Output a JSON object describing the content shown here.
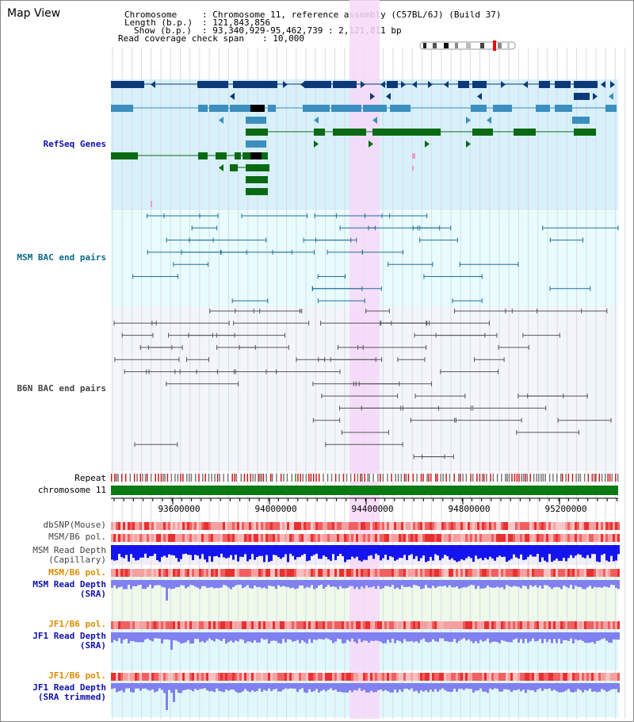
{
  "app": {
    "title": "Map View"
  },
  "info": {
    "chromosome_key": "Chromosome",
    "chromosome_val": ": Chromosome 11, reference assembly (C57BL/6J) (Build 37)",
    "length_key": "Length (b.p.)",
    "length_val": ": 121,843,856",
    "show_key": "Show (b.p.)",
    "show_val": ": 93,340,929-95,462,739 : 2,121,811 bp",
    "coverage_key": "Read coverage check span",
    "coverage_val": ": 10,000"
  },
  "tracks": {
    "refseq": "RefSeq Genes",
    "msm_bac": "MSM BAC end pairs",
    "b6n_bac": "B6N BAC end pairs",
    "repeat": "Repeat",
    "chromosome": "chromosome 11",
    "dbsnp": "dbSNP(Mouse)",
    "msm_pol1": "MSM/B6 pol.",
    "msm_depth_cap": "MSM Read Depth\n(Capillary)",
    "msm_pol2": "MSM/B6 pol.",
    "msm_depth_sra": "MSM Read Depth\n(SRA)",
    "jf1_pol1": "JF1/B6 pol.",
    "jf1_depth_sra": "JF1 Read Depth\n(SRA)",
    "jf1_pol2": "JF1/B6 pol.",
    "jf1_depth_trim": "JF1 Read Depth\n(SRA trimmed)"
  },
  "axis": {
    "ticks": [
      "93600000",
      "94000000",
      "94400000",
      "94800000",
      "95200000"
    ]
  },
  "colors": {
    "refseq_bg": "#d8f0fa",
    "msm_bg": "#e8fbfd",
    "b6n_bg": "#f2f6fa",
    "highlight": "#f6d8f8",
    "gene_dark": "#0c3a78",
    "gene_mid": "#3a8fbf",
    "gene_green": "#0a6a14",
    "chromosome_bar": "#0a7a12",
    "depth_blue": "#1414ee",
    "depth_light": "#8080f0"
  }
}
